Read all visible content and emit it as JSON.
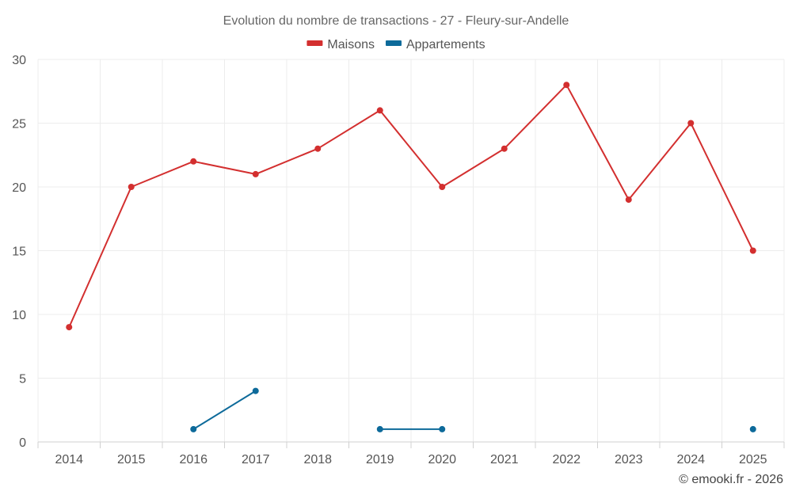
{
  "chart_data": {
    "type": "line",
    "title": "Evolution du nombre de transactions - 27 - Fleury-sur-Andelle",
    "categories": [
      "2014",
      "2015",
      "2016",
      "2017",
      "2018",
      "2019",
      "2020",
      "2021",
      "2022",
      "2023",
      "2024",
      "2025"
    ],
    "series": [
      {
        "name": "Maisons",
        "color": "#d32f2f",
        "values": [
          9,
          20,
          22,
          21,
          23,
          26,
          20,
          23,
          28,
          19,
          25,
          15
        ]
      },
      {
        "name": "Appartements",
        "color": "#0d6a9a",
        "values": [
          null,
          null,
          1,
          4,
          null,
          1,
          1,
          null,
          null,
          null,
          null,
          1
        ]
      }
    ],
    "ylim": [
      0,
      30
    ],
    "yticks": [
      0,
      5,
      10,
      15,
      20,
      25,
      30
    ],
    "grid": true,
    "legend": "top-center",
    "xlabel": "",
    "ylabel": ""
  },
  "credit": "© emooki.fr - 2026"
}
